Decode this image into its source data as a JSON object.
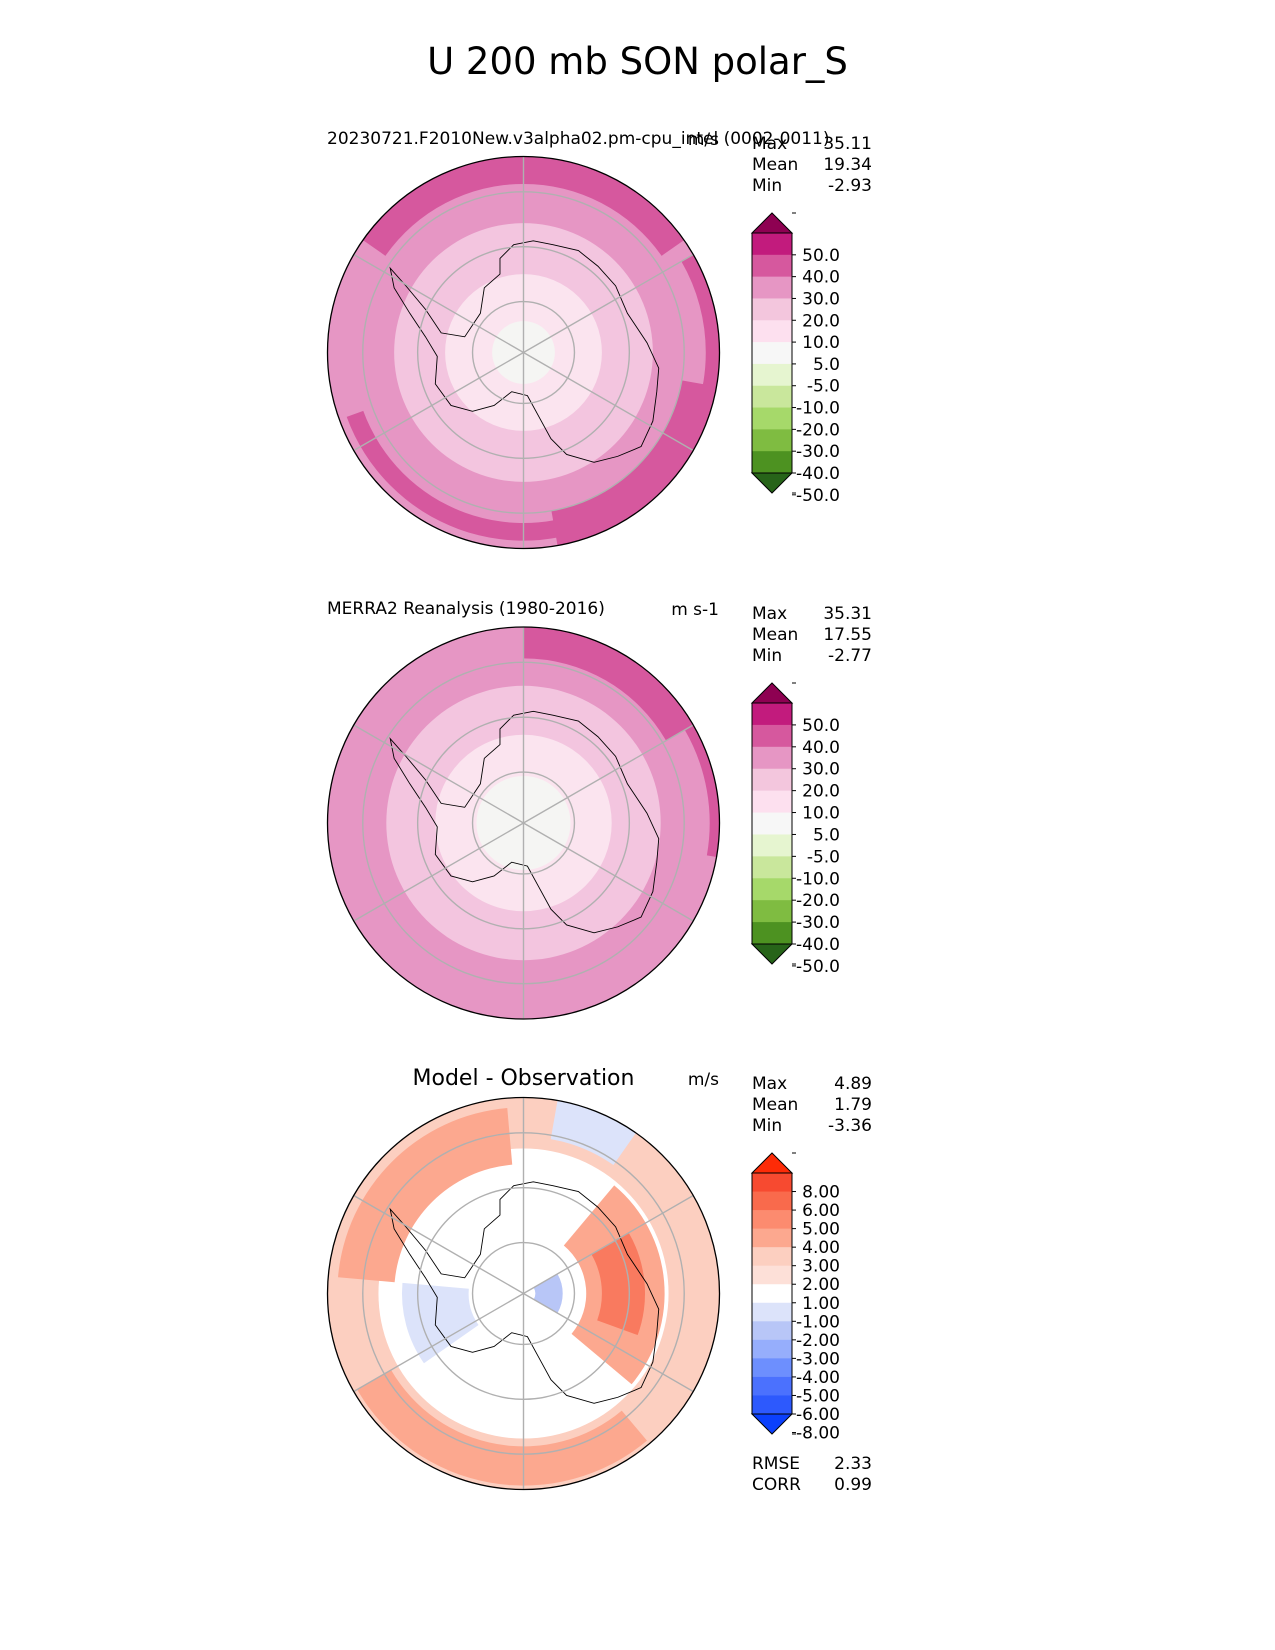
{
  "figure": {
    "title": "U 200 mb SON polar_S"
  },
  "chart_data": [
    {
      "type": "heatmap",
      "projection": "south-polar-stereographic",
      "title": "20230721.F2010New.v3alpha02.pm-cpu_intel (0002-0011)",
      "units": "m/s",
      "stats": [
        {
          "label": "Max",
          "value": "35.11"
        },
        {
          "label": "Mean",
          "value": "19.34"
        },
        {
          "label": "Min",
          "value": "-2.93"
        }
      ],
      "rings": [
        {
          "r": 1.0,
          "color": "#e696c4"
        },
        {
          "r": 0.66,
          "color": "#f3c5df"
        },
        {
          "r": 0.4,
          "color": "#fbe4ef"
        },
        {
          "r": 0.16,
          "color": "#f5f5f3"
        }
      ],
      "patches": [
        {
          "a1": 35,
          "a2": 145,
          "r1": 0.86,
          "r2": 1.0,
          "color": "#d6589e"
        },
        {
          "a1": -80,
          "a2": -10,
          "r1": 0.82,
          "r2": 1.0,
          "color": "#d6589e"
        },
        {
          "a1": -30,
          "a2": 30,
          "r1": 0.93,
          "r2": 1.0,
          "color": "#d6589e"
        },
        {
          "a1": 200,
          "a2": 300,
          "r1": 0.87,
          "r2": 0.96,
          "color": "#d6589e"
        }
      ],
      "colorbar": {
        "colors": [
          "#276419",
          "#4d9221",
          "#7fbc41",
          "#a6d96a",
          "#c9e79c",
          "#e6f5d0",
          "#f7f7f7",
          "#fde0ef",
          "#f3c6dd",
          "#e696c4",
          "#d6589e",
          "#c21b7d",
          "#8e0152"
        ],
        "ticks": [
          "-50.0",
          "-40.0",
          "-30.0",
          "-20.0",
          "-10.0",
          "-5.0",
          "5.0",
          "10.0",
          "20.0",
          "30.0",
          "40.0",
          "50.0"
        ]
      },
      "extra_stats": []
    },
    {
      "type": "heatmap",
      "projection": "south-polar-stereographic",
      "title": "MERRA2 Reanalysis (1980-2016)",
      "units": "m s-1",
      "stats": [
        {
          "label": "Max",
          "value": "35.31"
        },
        {
          "label": "Mean",
          "value": "17.55"
        },
        {
          "label": "Min",
          "value": "-2.77"
        }
      ],
      "rings": [
        {
          "r": 1.0,
          "color": "#e696c4"
        },
        {
          "r": 0.7,
          "color": "#f3c5df"
        },
        {
          "r": 0.45,
          "color": "#fbe4ef"
        },
        {
          "r": 0.24,
          "color": "#f5f5f3"
        }
      ],
      "patches": [
        {
          "a1": 30,
          "a2": 90,
          "r1": 0.84,
          "r2": 1.0,
          "color": "#d6589e"
        },
        {
          "a1": -10,
          "a2": 30,
          "r1": 0.95,
          "r2": 1.0,
          "color": "#d6589e"
        }
      ],
      "colorbar": {
        "colors": [
          "#276419",
          "#4d9221",
          "#7fbc41",
          "#a6d96a",
          "#c9e79c",
          "#e6f5d0",
          "#f7f7f7",
          "#fde0ef",
          "#f3c6dd",
          "#e696c4",
          "#d6589e",
          "#c21b7d",
          "#8e0152"
        ],
        "ticks": [
          "-50.0",
          "-40.0",
          "-30.0",
          "-20.0",
          "-10.0",
          "-5.0",
          "5.0",
          "10.0",
          "20.0",
          "30.0",
          "40.0",
          "50.0"
        ]
      },
      "extra_stats": []
    },
    {
      "type": "heatmap",
      "projection": "south-polar-stereographic",
      "title": "Model - Observation",
      "units": "m/s",
      "stats": [
        {
          "label": "Max",
          "value": "4.89"
        },
        {
          "label": "Mean",
          "value": "1.79"
        },
        {
          "label": "Min",
          "value": "-3.36"
        }
      ],
      "rings": [
        {
          "r": 1.0,
          "color": "#fccfc0"
        },
        {
          "r": 0.74,
          "color": "#ffffff"
        }
      ],
      "patches": [
        {
          "a1": 95,
          "a2": 175,
          "r1": 0.66,
          "r2": 0.95,
          "color": "#fca88f"
        },
        {
          "a1": -40,
          "a2": 50,
          "r1": 0.32,
          "r2": 0.72,
          "color": "#fca88f"
        },
        {
          "a1": -20,
          "a2": 30,
          "r1": 0.4,
          "r2": 0.62,
          "color": "#f97a5f"
        },
        {
          "a1": 210,
          "a2": 310,
          "r1": 0.78,
          "r2": 0.98,
          "color": "#fca88f"
        },
        {
          "a1": 55,
          "a2": 80,
          "r1": 0.8,
          "r2": 1.0,
          "color": "#dce3fa"
        },
        {
          "a1": 175,
          "a2": 215,
          "r1": 0.28,
          "r2": 0.62,
          "color": "#dce3fa"
        },
        {
          "a1": -30,
          "a2": 30,
          "r1": 0.06,
          "r2": 0.2,
          "color": "#b8c6f7"
        }
      ],
      "colorbar": {
        "colors": [
          "#0b40fc",
          "#2d59fd",
          "#4b71fe",
          "#6d8ffe",
          "#96aefc",
          "#b8c6f7",
          "#dce3fa",
          "#ffffff",
          "#fde0d8",
          "#fccfc0",
          "#fca88f",
          "#fc8b6f",
          "#f96a4c",
          "#f74a30",
          "#fd2b07"
        ],
        "ticks": [
          "-8.00",
          "-6.00",
          "-5.00",
          "-4.00",
          "-3.00",
          "-2.00",
          "-1.00",
          "1.00",
          "2.00",
          "3.00",
          "4.00",
          "5.00",
          "6.00",
          "8.00"
        ]
      },
      "extra_stats": [
        {
          "label": "RMSE",
          "value": "2.33"
        },
        {
          "label": "CORR",
          "value": "0.99"
        }
      ]
    }
  ]
}
